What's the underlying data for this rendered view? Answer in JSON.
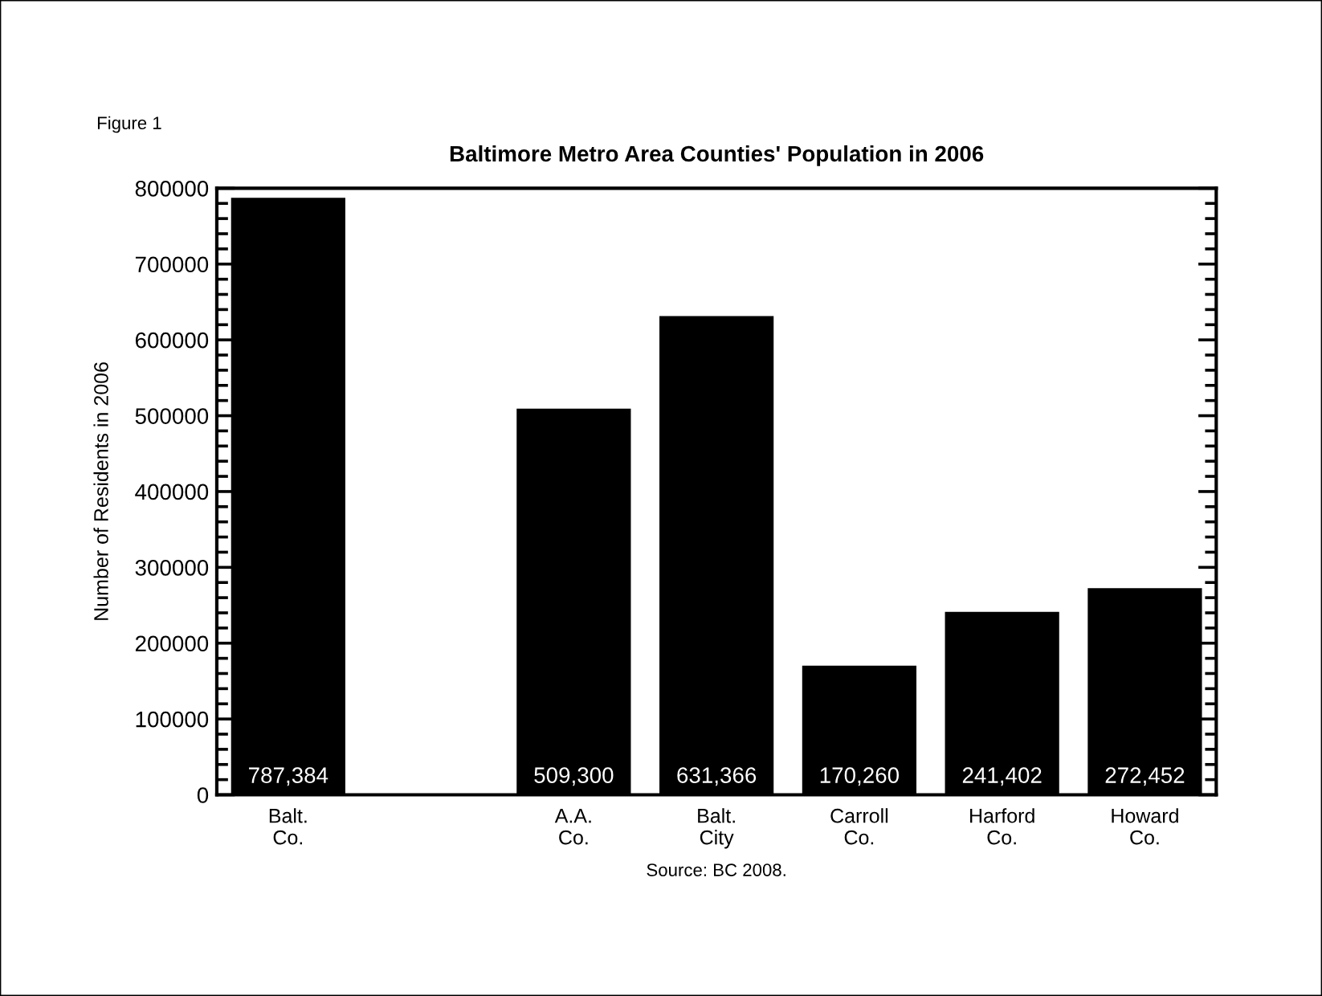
{
  "chart_data": {
    "type": "bar",
    "title": "Baltimore Metro Area Counties' Population in 2006",
    "ylabel": "Number of Residents in 2006",
    "categories": [
      "Balt.\nCo.",
      null,
      "A.A.\nCo.",
      "Balt.\nCity",
      "Carroll\nCo.",
      "Harford\nCo.",
      "Howard\nCo."
    ],
    "values": [
      787384,
      null,
      509300,
      631366,
      170260,
      241402,
      272452
    ],
    "value_labels": [
      "787,384",
      null,
      "509,300",
      "631,366",
      "170,260",
      "241,402",
      "272,452"
    ],
    "color": "#000000",
    "ylim": [
      0,
      800000
    ],
    "yticks": [
      0,
      100000,
      200000,
      300000,
      400000,
      500000,
      600000,
      700000,
      800000
    ],
    "grid": false,
    "legend": false,
    "annotations": [
      "Figure 1",
      "Source: BC 2008."
    ]
  }
}
